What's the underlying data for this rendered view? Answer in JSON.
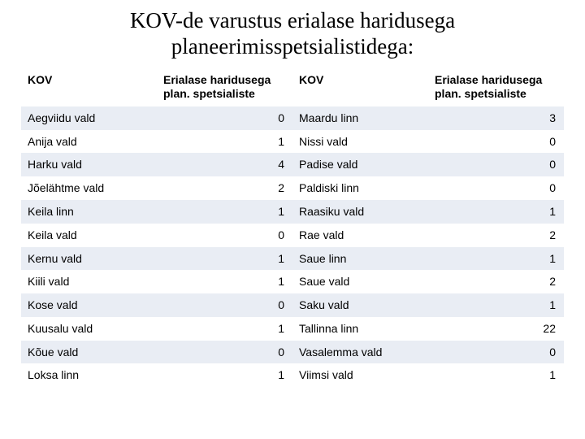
{
  "title": "KOV-de varustus erialase haridusega planeerimisspetsialistidega:",
  "table": {
    "columns": [
      "KOV",
      "Erialase haridusega plan. spetsialiste",
      "KOV",
      "Erialase haridusega plan. spetsialiste"
    ],
    "rows": [
      [
        "Aegviidu vald",
        "0",
        "Maardu linn",
        "3"
      ],
      [
        "Anija vald",
        "1",
        "Nissi vald",
        "0"
      ],
      [
        "Harku vald",
        "4",
        "Padise vald",
        "0"
      ],
      [
        "Jõelähtme vald",
        "2",
        "Paldiski linn",
        "0"
      ],
      [
        "Keila linn",
        "1",
        "Raasiku vald",
        "1"
      ],
      [
        "Keila vald",
        "0",
        "Rae vald",
        "2"
      ],
      [
        "Kernu vald",
        "1",
        "Saue linn",
        "1"
      ],
      [
        "Kiili vald",
        "1",
        "Saue vald",
        "2"
      ],
      [
        "Kose vald",
        "0",
        "Saku vald",
        "1"
      ],
      [
        "Kuusalu vald",
        "1",
        "Tallinna linn",
        "22"
      ],
      [
        "Kõue vald",
        "0",
        "Vasalemma vald",
        "0"
      ],
      [
        "Loksa linn",
        "1",
        "Viimsi vald",
        "1"
      ]
    ],
    "colors": {
      "row_alt_bg": "#e9edf4",
      "row_bg": "#ffffff",
      "text": "#000000"
    },
    "col_widths_pct": [
      25,
      25,
      25,
      25
    ],
    "font_size_header": 14,
    "font_size_cell": 14
  }
}
